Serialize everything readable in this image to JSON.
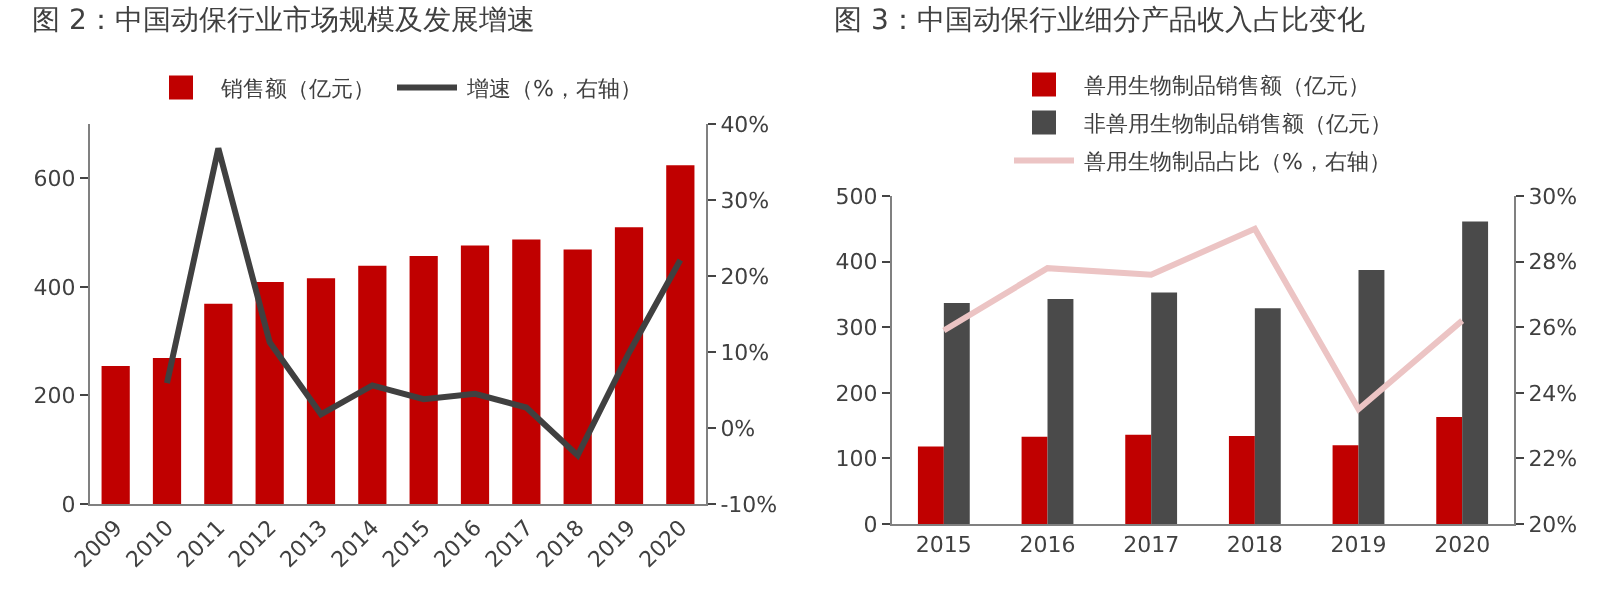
{
  "chart_data": [
    {
      "type": "bar",
      "title": "图 2：中国动保行业市场规模及发展增速",
      "categories": [
        "2009",
        "2010",
        "2011",
        "2012",
        "2013",
        "2014",
        "2015",
        "2016",
        "2017",
        "2018",
        "2019",
        "2020"
      ],
      "series": [
        {
          "name": "销售额（亿元）",
          "color": "#c00000",
          "values": [
            254,
            269,
            369,
            409,
            416,
            439,
            457,
            476,
            487,
            469,
            510,
            624
          ]
        },
        {
          "name": "增速（%，右轴）",
          "type": "line",
          "axis": "y2",
          "color": "#404040",
          "values": [
            null,
            5.9,
            36.8,
            11.3,
            1.8,
            5.6,
            3.8,
            4.5,
            2.7,
            -3.6,
            9.9,
            22.1
          ]
        }
      ],
      "ylim": [
        0,
        700
      ],
      "yticks": [
        0,
        200,
        400,
        600
      ],
      "y2lim": [
        -10,
        40
      ],
      "y2ticks": [
        {
          "value": -10,
          "label": "-10%"
        },
        {
          "value": 0,
          "label": "0%"
        },
        {
          "value": 10,
          "label": "10%"
        },
        {
          "value": 20,
          "label": "20%"
        },
        {
          "value": 30,
          "label": "30%"
        },
        {
          "value": 40,
          "label": "40%"
        }
      ],
      "legend": "top",
      "grid": false
    },
    {
      "type": "bar",
      "title": "图 3：中国动保行业细分产品收入占比变化",
      "categories": [
        "2015",
        "2016",
        "2017",
        "2018",
        "2019",
        "2020"
      ],
      "series": [
        {
          "name": "兽用生物制品销售额（亿元）",
          "color": "#c00000",
          "values": [
            118,
            133,
            136,
            134,
            120,
            163
          ]
        },
        {
          "name": "非兽用生物制品销售额（亿元）",
          "color": "#4a4a4a",
          "values": [
            337,
            343,
            353,
            329,
            387,
            461
          ]
        },
        {
          "name": "兽用生物制品占比（%，右轴）",
          "type": "line",
          "axis": "y2",
          "color": "#ecc4c4",
          "values": [
            25.9,
            27.8,
            27.6,
            29.0,
            23.5,
            26.2
          ]
        }
      ],
      "ylim": [
        0,
        500
      ],
      "yticks": [
        0,
        100,
        200,
        300,
        400,
        500
      ],
      "y2lim": [
        20,
        30
      ],
      "y2ticks": [
        {
          "value": 20,
          "label": "20%"
        },
        {
          "value": 22,
          "label": "22%"
        },
        {
          "value": 24,
          "label": "24%"
        },
        {
          "value": 26,
          "label": "26%"
        },
        {
          "value": 28,
          "label": "28%"
        },
        {
          "value": 30,
          "label": "30%"
        }
      ],
      "legend": "top",
      "grid": false
    }
  ]
}
